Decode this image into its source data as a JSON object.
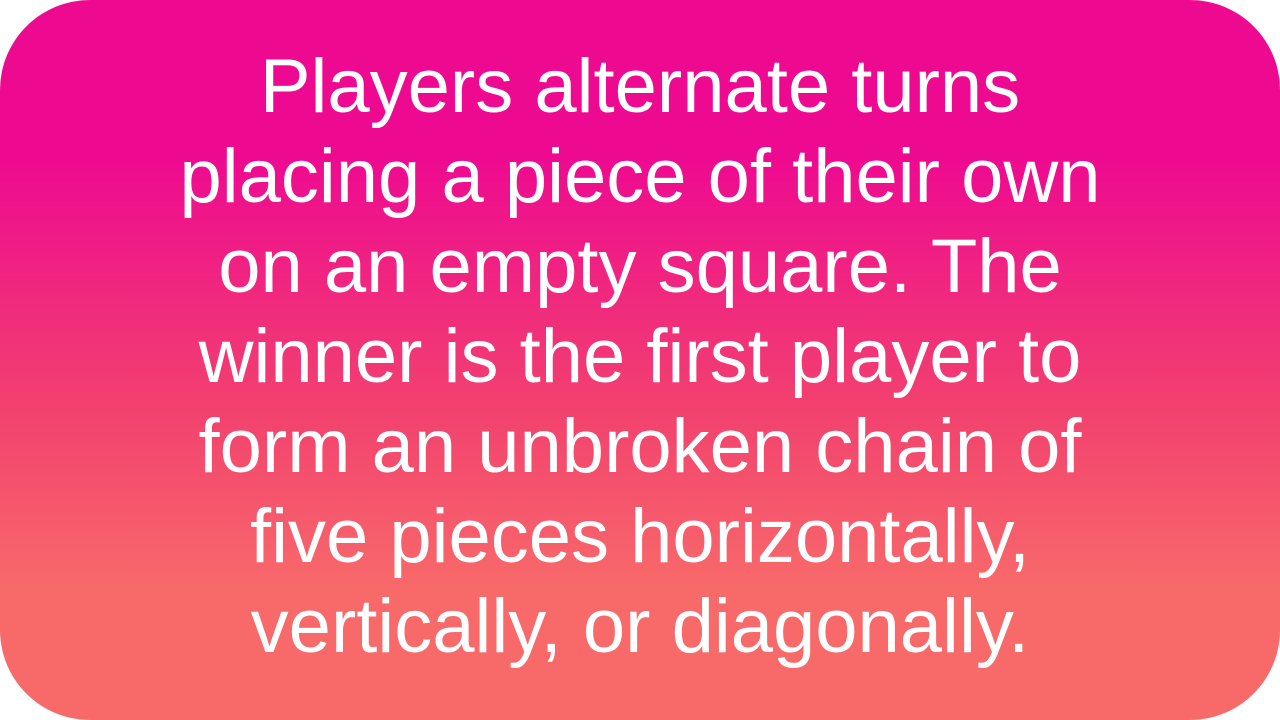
{
  "card": {
    "text": "Players alternate turns placing a piece of their own on an empty square. The winner is the first player to form an unbroken chain of five pieces horizontally, vertically, or diagonally.",
    "colors": {
      "gradient_top": "#ee0a90",
      "gradient_bottom": "#f86a6a",
      "text": "#ffffff"
    }
  }
}
